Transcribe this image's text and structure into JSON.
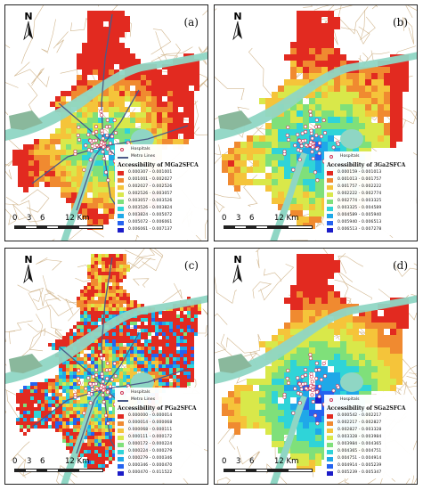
{
  "colors": {
    "scale": [
      "#1c1cc8",
      "#2563f0",
      "#1fa8e8",
      "#2fd4d8",
      "#7fe07a",
      "#d9e84a",
      "#f5c43a",
      "#f08a30",
      "#e22a20"
    ],
    "river": "#8fd6c4",
    "roads": "#c9a97a",
    "metro": "#4a5a88",
    "hospital": "#cc3355"
  },
  "legend_labels": {
    "hospitals": "Hospitals",
    "metro": "Metro Lines"
  },
  "scalebar": {
    "ticks": [
      "0",
      "3",
      "6"
    ],
    "last": "12 Km"
  },
  "panels": [
    {
      "label": "(a)",
      "north": "N",
      "show_metro": true,
      "legend_title": "Accessibility of MGa2SFCA",
      "classes": [
        "0.000307 - 0.001001",
        "0.001001 - 0.002027",
        "0.002027 - 0.002526",
        "0.002526 - 0.003057",
        "0.003057 - 0.003526",
        "0.003526 - 0.003824",
        "0.003824 - 0.005072",
        "0.005072 - 0.006061",
        "0.006061 - 0.007137"
      ]
    },
    {
      "label": "(b)",
      "north": "N",
      "show_metro": false,
      "legend_title": "Accessibility of 3Ga2SFCA",
      "classes": [
        "0.000159 - 0.001013",
        "0.001013 - 0.001757",
        "0.001757 - 0.002222",
        "0.002222 - 0.002774",
        "0.002774 - 0.003325",
        "0.003325 - 0.004589",
        "0.004589 - 0.005940",
        "0.005940 - 0.006513",
        "0.006513 - 0.007278"
      ]
    },
    {
      "label": "(c)",
      "north": "N",
      "show_metro": true,
      "legend_title": "Accessibility of PGa2SFCA",
      "classes": [
        "0.000000 - 0.000014",
        "0.000014 - 0.000068",
        "0.000068 - 0.000111",
        "0.000111 - 0.000172",
        "0.000172 - 0.000224",
        "0.000224 - 0.000279",
        "0.000279 - 0.000346",
        "0.000346 - 0.000470",
        "0.000470 - 0.011522"
      ]
    },
    {
      "label": "(d)",
      "north": "N",
      "show_metro": false,
      "legend_title": "Accessibility of SGa2SFCA",
      "classes": [
        "0.000542 - 0.002217",
        "0.002217 - 0.002827",
        "0.002827 - 0.003328",
        "0.003328 - 0.003984",
        "0.003984 - 0.004365",
        "0.004365 - 0.004751",
        "0.004751 - 0.004914",
        "0.004914 - 0.005239",
        "0.005239 - 0.005347"
      ]
    }
  ]
}
